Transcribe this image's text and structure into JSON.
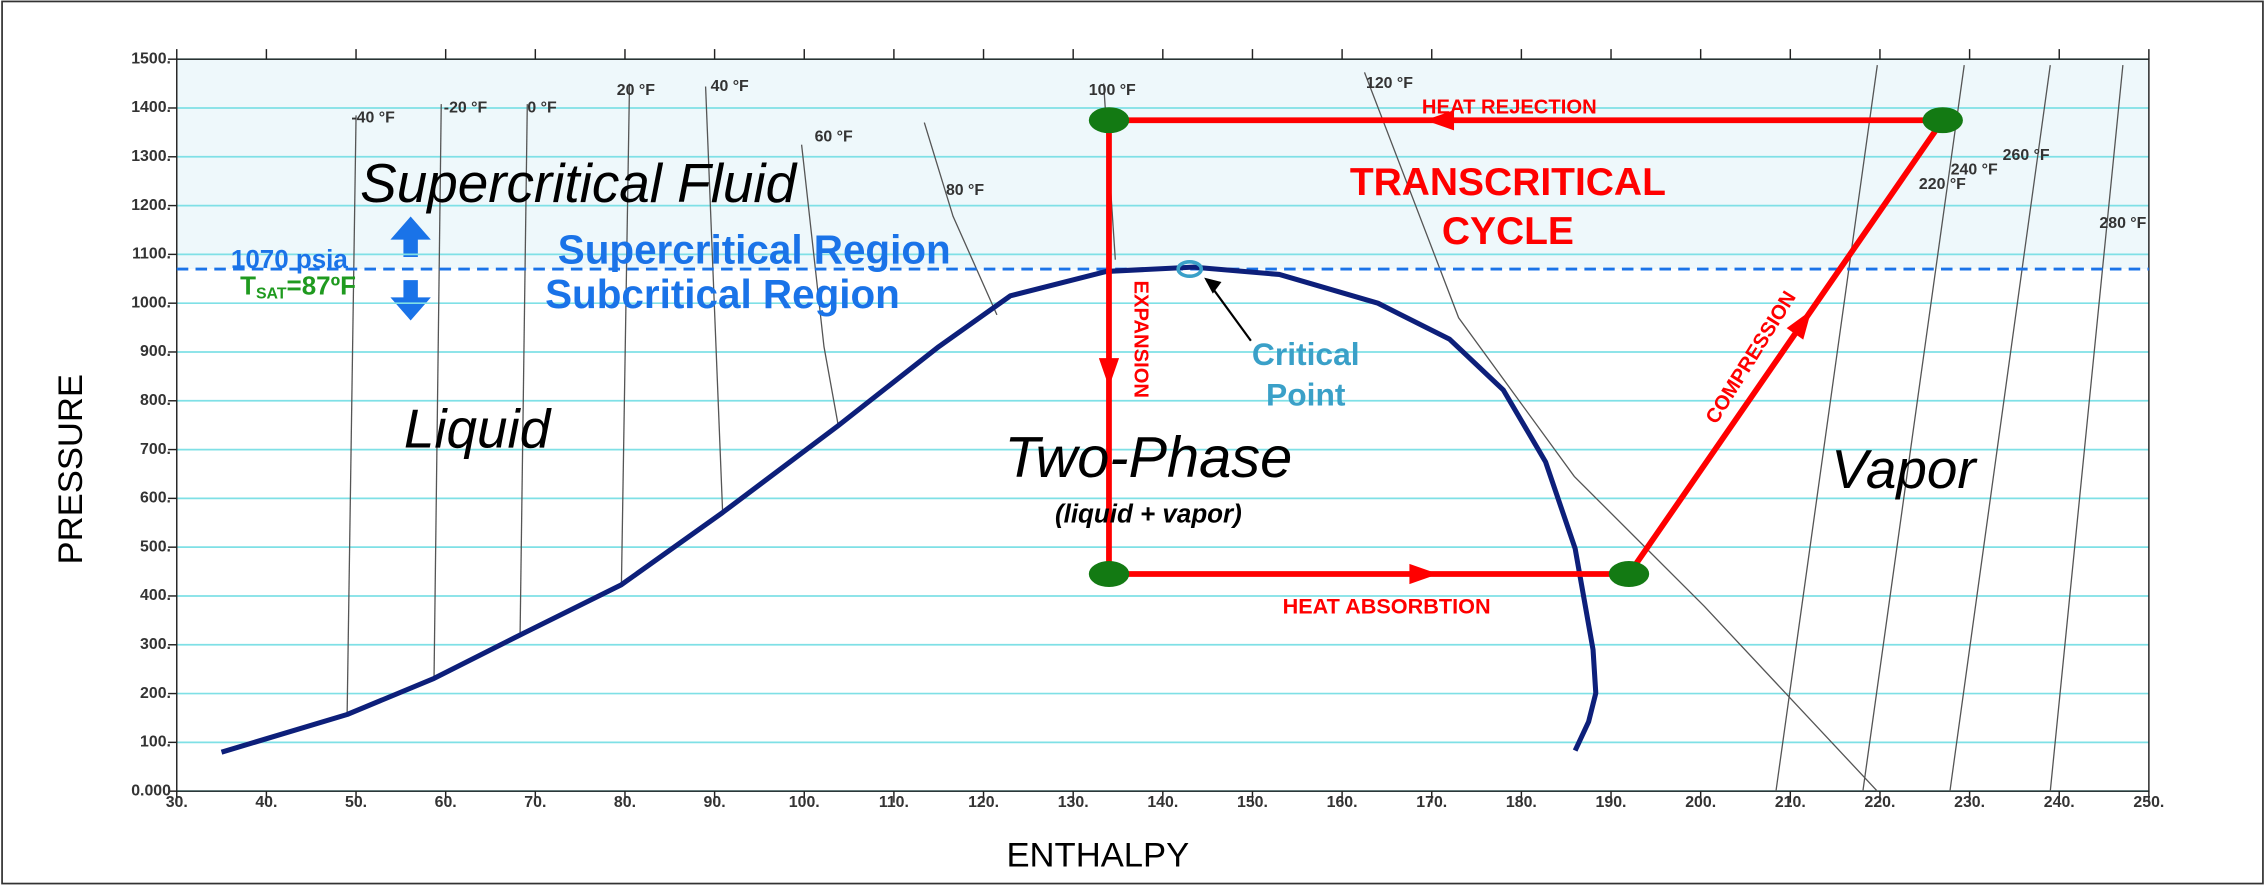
{
  "chart_data": {
    "type": "line",
    "x_label": "ENTHALPY",
    "y_label": "PRESSURE",
    "xlim": [
      30,
      250
    ],
    "ylim": [
      0,
      1500
    ],
    "grid": true,
    "xticks": [
      {
        "value": 30,
        "label": "30."
      },
      {
        "value": 40,
        "label": "40."
      },
      {
        "value": 50,
        "label": "50."
      },
      {
        "value": 60,
        "label": "60."
      },
      {
        "value": 70,
        "label": "70."
      },
      {
        "value": 80,
        "label": "80."
      },
      {
        "value": 90,
        "label": "90."
      },
      {
        "value": 100,
        "label": "100."
      },
      {
        "value": 110,
        "label": "110."
      },
      {
        "value": 120,
        "label": "120."
      },
      {
        "value": 130,
        "label": "130."
      },
      {
        "value": 140,
        "label": "140."
      },
      {
        "value": 150,
        "label": "150."
      },
      {
        "value": 160,
        "label": "160."
      },
      {
        "value": 170,
        "label": "170."
      },
      {
        "value": 180,
        "label": "180."
      },
      {
        "value": 190,
        "label": "190."
      },
      {
        "value": 200,
        "label": "200."
      },
      {
        "value": 210,
        "label": "210."
      },
      {
        "value": 220,
        "label": "220."
      },
      {
        "value": 230,
        "label": "230."
      },
      {
        "value": 240,
        "label": "240."
      },
      {
        "value": 250,
        "label": "250."
      }
    ],
    "yticks": [
      {
        "value": 0,
        "label": "0.000"
      },
      {
        "value": 100,
        "label": "100."
      },
      {
        "value": 200,
        "label": "200."
      },
      {
        "value": 300,
        "label": "300."
      },
      {
        "value": 400,
        "label": "400."
      },
      {
        "value": 500,
        "label": "500."
      },
      {
        "value": 600,
        "label": "600."
      },
      {
        "value": 700,
        "label": "700."
      },
      {
        "value": 800,
        "label": "800."
      },
      {
        "value": 900,
        "label": "900."
      },
      {
        "value": 1000,
        "label": "1000."
      },
      {
        "value": 1100,
        "label": "1100."
      },
      {
        "value": 1200,
        "label": "1200."
      },
      {
        "value": 1300,
        "label": "1300."
      },
      {
        "value": 1400,
        "label": "1400."
      },
      {
        "value": 1500,
        "label": "1500."
      }
    ],
    "series": [
      {
        "color": "#0d1f7a",
        "x": [
          35,
          49,
          58.7,
          68.3,
          79.6,
          90.9,
          103.8,
          115,
          123,
          133.7,
          143.4,
          153,
          164,
          172,
          178,
          182.7,
          186,
          188,
          188.3,
          187.5,
          186
        ],
        "values": [
          80,
          157,
          231,
          320,
          423,
          571,
          749,
          911,
          1015,
          1065,
          1074,
          1059,
          1000,
          926,
          822,
          675,
          497,
          290,
          201,
          142,
          83
        ]
      },
      {
        "color": "#ff0000",
        "x": [
          192,
          227,
          134,
          134
        ],
        "values": [
          445,
          1375,
          1375,
          445
        ]
      }
    ],
    "isotherms": [
      {
        "name": "-40 °F",
        "x": [
          49,
          50
        ],
        "values": [
          157,
          1385
        ]
      },
      {
        "name": "-20 °F",
        "x": [
          58.7,
          59.5
        ],
        "values": [
          231,
          1408
        ]
      },
      {
        "name": "0 °F",
        "x": [
          68.3,
          69.1
        ],
        "values": [
          320,
          1408
        ]
      },
      {
        "name": "20 °F",
        "x": [
          79.6,
          80.5
        ],
        "values": [
          423,
          1450
        ]
      },
      {
        "name": "40 °F",
        "x": [
          90.9,
          89
        ],
        "values": [
          571,
          1444
        ]
      },
      {
        "name": "60 °F",
        "x": [
          103.8,
          102.2,
          99.7
        ],
        "values": [
          749,
          911,
          1325
        ]
      },
      {
        "name": "80 °F",
        "x": [
          121.5,
          116.6,
          113.4
        ],
        "values": [
          976,
          1178,
          1370
        ]
      },
      {
        "name": "100 °F",
        "x": [
          133.4,
          134.7
        ],
        "values": [
          1450,
          1089
        ]
      },
      {
        "name": "120 °F",
        "x": [
          162.5,
          173,
          185.9,
          200.4,
          219.7
        ],
        "values": [
          1473,
          970,
          645,
          379,
          0
        ]
      },
      {
        "name": "220 °F",
        "x": [
          219.7,
          208.4
        ],
        "values": [
          1488,
          0
        ]
      },
      {
        "name": "240 °F",
        "x": [
          229.4,
          218.1
        ],
        "values": [
          1488,
          0
        ]
      },
      {
        "name": "260 °F",
        "x": [
          239,
          227.8
        ],
        "values": [
          1488,
          0
        ]
      },
      {
        "name": "280 °F",
        "x": [
          247.1,
          239
        ],
        "values": [
          1488,
          0
        ]
      }
    ],
    "reference_line": {
      "value": 1070,
      "label": "1070 psia"
    },
    "tsat": {
      "main": "T",
      "sub": "SAT",
      "rest": "=87ºF"
    },
    "critical_point": {
      "x": 143,
      "y": 1070,
      "label_lines": [
        "Critical",
        "Point"
      ]
    },
    "annotations": [
      "Supercritical Fluid",
      "Supercritical Region",
      "Subcritical Region",
      "Liquid",
      "Two-Phase",
      "(liquid + vapor)",
      "Vapor",
      "TRANSCRITICAL",
      "CYCLE",
      "HEAT REJECTION",
      "HEAT ABSORBTION",
      "EXPANSION",
      "COMPRESSION"
    ]
  }
}
